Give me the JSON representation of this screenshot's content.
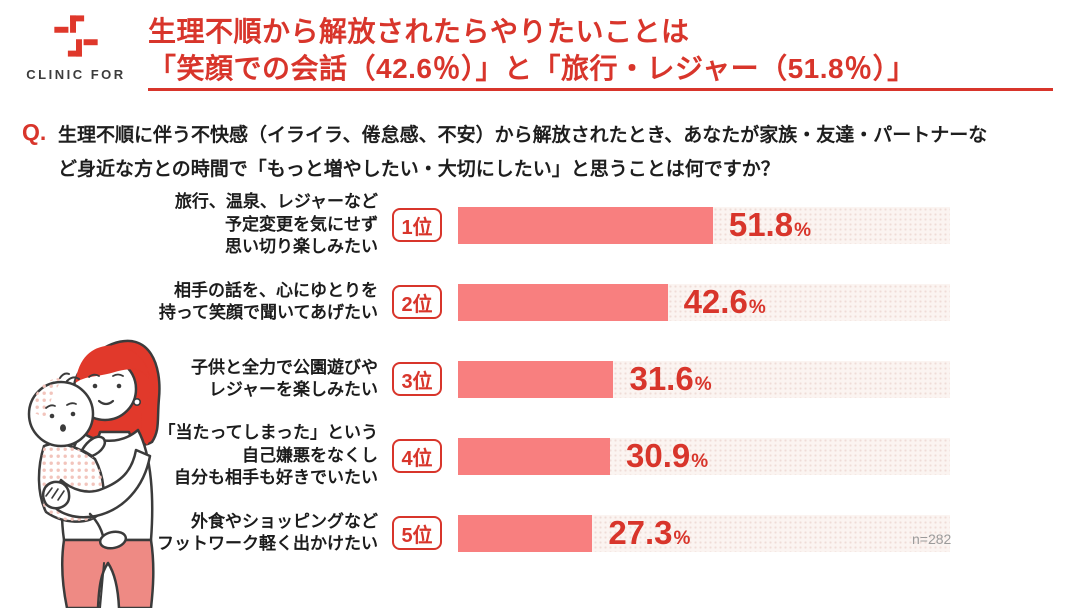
{
  "brand": {
    "logo_text": "CLINIC FOR",
    "logo_color": "#DF382B"
  },
  "header": {
    "title_lines": [
      "生理不順から解放されたらやりたいことは",
      "「笑顔での会話（42.6％）」と「旅行・レジャー（51.8％）」"
    ],
    "accent_color": "#D8352B"
  },
  "question": {
    "prefix": "Q.",
    "lines": [
      "生理不順に伴う不快感（イライラ、倦怠感、不安）から解放されたとき、あなたが家族・友達・パートナーな",
      "ど身近な方との時間で「もっと増やしたい・大切にしたい」と思うことは何ですか？"
    ]
  },
  "chart_data": {
    "type": "bar",
    "orientation": "horizontal",
    "xlim": [
      0,
      100
    ],
    "value_suffix": "%",
    "note": "n=282",
    "bar_color": "#F87F7F",
    "track_color": "#FBF4F1",
    "value_text_color": "#D8352B",
    "categories": [
      "旅行、温泉、レジャーなど予定変更を気にせず思い切り楽しみたい",
      "相手の話を、心にゆとりを持って笑顔で聞いてあげたい",
      "子供と全力で公園遊びやレジャーを楽しみたい",
      "「当たってしまった」という自己嫌悪をなくし自分も相手も好きでいたい",
      "外食やショッピングなどフットワーク軽く出かけたい"
    ],
    "values": [
      51.8,
      42.6,
      31.6,
      30.9,
      27.3
    ],
    "rows": [
      {
        "rank": "1位",
        "label_lines": [
          "旅行、温泉、レジャーなど",
          "予定変更を気にせず",
          "思い切り楽しみたい"
        ],
        "value": "51.8",
        "pct": 51.8
      },
      {
        "rank": "2位",
        "label_lines": [
          "相手の話を、心にゆとりを",
          "持って笑顔で聞いてあげたい"
        ],
        "value": "42.6",
        "pct": 42.6
      },
      {
        "rank": "3位",
        "label_lines": [
          "子供と全力で公園遊びや",
          "レジャーを楽しみたい"
        ],
        "value": "31.6",
        "pct": 31.6
      },
      {
        "rank": "4位",
        "label_lines": [
          "「当たってしまった」という",
          "自己嫌悪をなくし",
          "自分も相手も好きでいたい"
        ],
        "value": "30.9",
        "pct": 30.9
      },
      {
        "rank": "5位",
        "label_lines": [
          "外食やショッピングなど",
          "フットワーク軽く出かけたい"
        ],
        "value": "27.3",
        "pct": 27.3
      }
    ]
  },
  "footer": {
    "sample_note": "n=282"
  },
  "illustration": {
    "name": "mother-holding-baby-illustration"
  }
}
